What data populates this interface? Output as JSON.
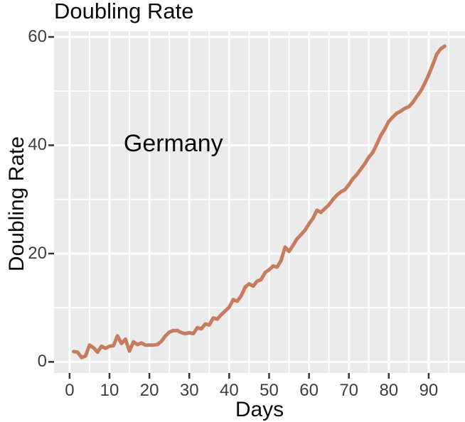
{
  "figure_title": "Doubling Rate",
  "colors": {
    "line": "#C67D5F",
    "panel_background": "#EBEBEB",
    "gridline": "#FFFFFF",
    "tick_mark": "#333333",
    "axis_text": "#3D3D3D",
    "title_text": "#0A0A0A"
  },
  "chart_data": {
    "type": "line",
    "title": "Doubling Rate",
    "xlabel": "Days",
    "ylabel": "Doubling Rate",
    "annotation": {
      "text": "Germany",
      "x": 26,
      "y": 40
    },
    "legend": "none",
    "grid": true,
    "xlim": [
      -3.9,
      99.1
    ],
    "ylim": [
      -2.05,
      61.05
    ],
    "x_ticks": [
      0,
      10,
      20,
      30,
      40,
      50,
      60,
      70,
      80,
      90
    ],
    "y_ticks": [
      0,
      20,
      40,
      60
    ],
    "x_minor_ticks": [
      5,
      15,
      25,
      35,
      45,
      55,
      65,
      75,
      85,
      95
    ],
    "y_minor_ticks": [
      10,
      30,
      50
    ],
    "series": [
      {
        "name": "Germany",
        "x": [
          1,
          2,
          3,
          4,
          5,
          6,
          7,
          8,
          9,
          10,
          11,
          12,
          13,
          14,
          15,
          16,
          17,
          18,
          19,
          20,
          21,
          22,
          23,
          24,
          25,
          26,
          27,
          28,
          29,
          30,
          31,
          32,
          33,
          34,
          35,
          36,
          37,
          38,
          39,
          40,
          41,
          42,
          43,
          44,
          45,
          46,
          47,
          48,
          49,
          50,
          51,
          52,
          53,
          54,
          55,
          56,
          57,
          58,
          59,
          60,
          61,
          62,
          63,
          64,
          65,
          66,
          67,
          68,
          69,
          70,
          71,
          72,
          73,
          74,
          75,
          76,
          77,
          78,
          79,
          80,
          81,
          82,
          83,
          84,
          85,
          86,
          87,
          88,
          89,
          90,
          91,
          92,
          93,
          94
        ],
        "y": [
          1.9,
          1.8,
          0.8,
          1.1,
          3.1,
          2.6,
          1.8,
          2.9,
          2.5,
          2.9,
          3.0,
          4.8,
          3.4,
          4.2,
          2.0,
          3.7,
          3.2,
          3.5,
          3.1,
          3.1,
          3.1,
          3.2,
          3.8,
          4.8,
          5.5,
          5.8,
          5.8,
          5.4,
          5.2,
          5.4,
          5.2,
          6.3,
          6.1,
          7.0,
          6.8,
          8.1,
          7.9,
          8.7,
          9.4,
          10.1,
          11.5,
          11.2,
          12.2,
          13.8,
          14.4,
          14.0,
          14.9,
          15.2,
          16.5,
          17.0,
          17.7,
          17.5,
          18.7,
          21.2,
          20.4,
          21.5,
          22.7,
          23.5,
          24.3,
          25.5,
          26.5,
          28.0,
          27.6,
          28.3,
          29.0,
          30.0,
          30.8,
          31.4,
          31.8,
          32.7,
          33.8,
          34.6,
          35.6,
          36.6,
          37.8,
          38.7,
          40.2,
          41.8,
          43.0,
          44.4,
          45.2,
          45.9,
          46.3,
          46.8,
          47.1,
          47.9,
          49.0,
          50.0,
          51.4,
          53.0,
          54.8,
          56.8,
          57.8,
          58.3
        ]
      }
    ]
  }
}
